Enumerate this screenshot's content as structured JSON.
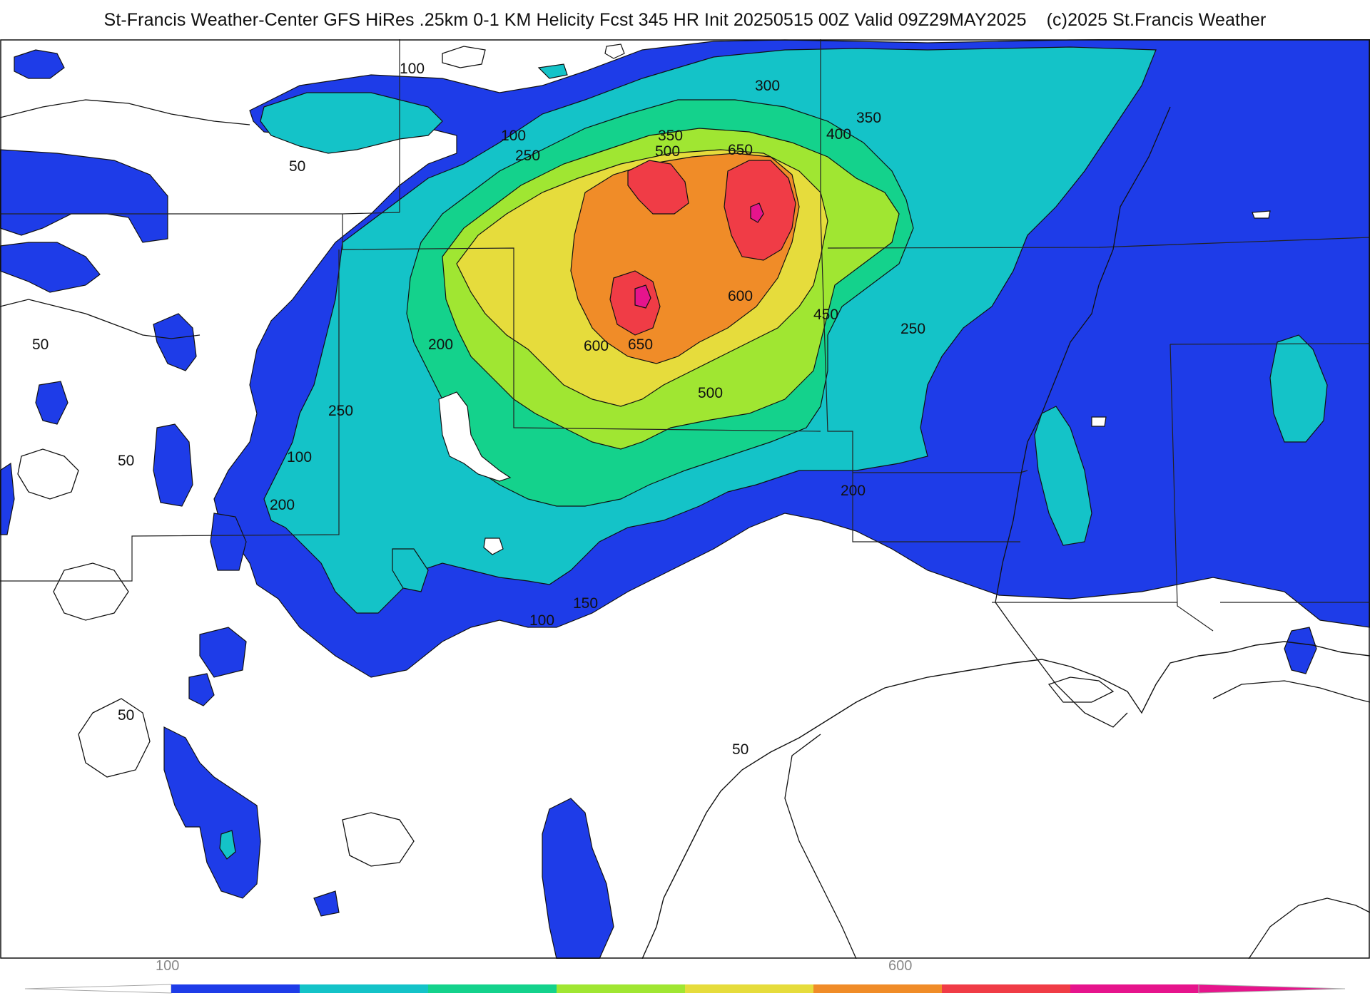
{
  "header": {
    "title": "St-Francis Weather-Center GFS HiRes .25km 0-1 KM Helicity Fcst 345 HR Init 20250515 00Z  Valid 09Z29MAY2025",
    "copyright": "(c)2025 St.Francis Weather"
  },
  "map": {
    "contour_labels": [
      "100",
      "50",
      "100",
      "250",
      "300",
      "350",
      "350",
      "500",
      "650",
      "400",
      "50",
      "200",
      "600",
      "450",
      "250",
      "600",
      "650",
      "250",
      "500",
      "100",
      "50",
      "200",
      "200",
      "150",
      "100",
      "50",
      "50"
    ]
  },
  "colorbar": {
    "tick_labels": [
      "100",
      "600"
    ],
    "colors": [
      "#1e3ce8",
      "#14c3c8",
      "#14d28c",
      "#a0e632",
      "#e6dc3c",
      "#f08c28",
      "#f03c46",
      "#e6148c"
    ]
  },
  "colors": {
    "blue": "#1e3ce8",
    "teal": "#14c3c8",
    "green": "#14d28c",
    "lime": "#a0e632",
    "yellow": "#e6dc3c",
    "orange": "#f08c28",
    "red": "#f03c46",
    "magenta": "#e6148c"
  }
}
